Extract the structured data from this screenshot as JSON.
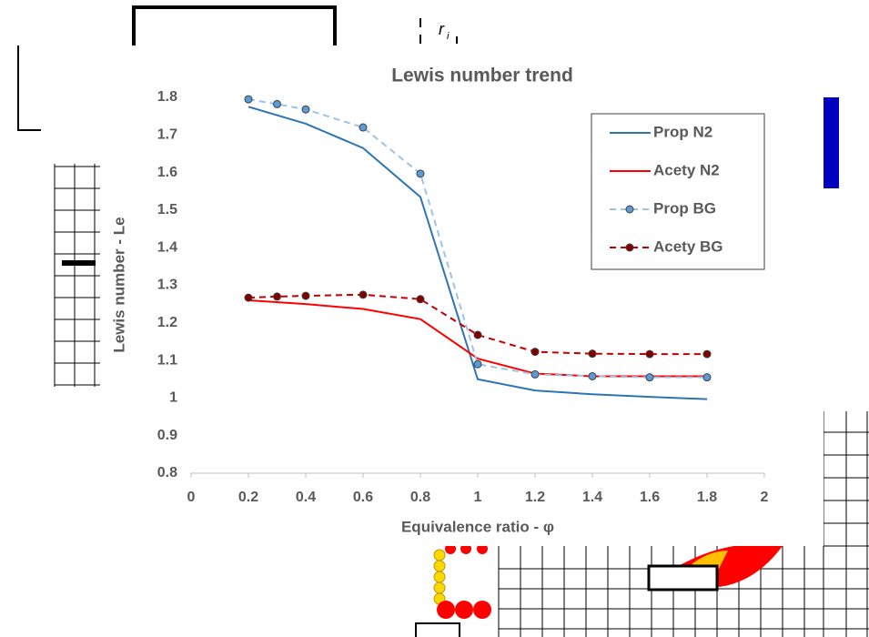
{
  "background_labels": [
    "r",
    "i"
  ],
  "chart_data": {
    "type": "line",
    "title": "Lewis number trend",
    "x_label": "Equivalence ratio - φ",
    "y_label": "Lewis number - Le",
    "xlim": [
      0,
      2
    ],
    "xticks": [
      0,
      0.2,
      0.4,
      0.6,
      0.8,
      1,
      1.2,
      1.4,
      1.6,
      1.8,
      2
    ],
    "ylim": [
      0.8,
      1.8
    ],
    "yticks": [
      0.8,
      0.9,
      1,
      1.1,
      1.2,
      1.3,
      1.4,
      1.5,
      1.6,
      1.7,
      1.8
    ],
    "grid": false,
    "legend": "upper right",
    "series": [
      {
        "name": "Prop N2",
        "color": "#2e75b6",
        "line_style": "solid",
        "marker": false,
        "x": [
          0.2,
          0.4,
          0.6,
          0.8,
          1,
          1.2,
          1.4,
          1.6,
          1.8
        ],
        "values": [
          1.775,
          1.73,
          1.665,
          1.535,
          1.05,
          1.02,
          1.01,
          1.003,
          0.997
        ]
      },
      {
        "name": "Acety N2",
        "color": "#ff0000",
        "line_style": "solid",
        "marker": false,
        "x": [
          0.2,
          0.4,
          0.6,
          0.8,
          1,
          1.2,
          1.4,
          1.6,
          1.8
        ],
        "values": [
          1.26,
          1.25,
          1.237,
          1.21,
          1.105,
          1.065,
          1.058,
          1.058,
          1.058
        ]
      },
      {
        "name": "Prop BG",
        "color": "#9dc3e6",
        "marker_color": "#5b9bd5",
        "line_style": "dashed",
        "marker": true,
        "x": [
          0.2,
          0.3,
          0.4,
          0.6,
          0.8,
          1,
          1.2,
          1.4,
          1.6,
          1.8
        ],
        "values": [
          1.795,
          1.782,
          1.768,
          1.72,
          1.597,
          1.09,
          1.063,
          1.058,
          1.055,
          1.055
        ]
      },
      {
        "name": "Acety BG",
        "color": "#c00000",
        "marker_color": "#800000",
        "line_style": "dashed",
        "marker": true,
        "x": [
          0.2,
          0.3,
          0.4,
          0.6,
          0.8,
          1,
          1.2,
          1.4,
          1.6,
          1.8
        ],
        "values": [
          1.267,
          1.27,
          1.272,
          1.275,
          1.263,
          1.168,
          1.123,
          1.118,
          1.117,
          1.117
        ]
      }
    ]
  }
}
